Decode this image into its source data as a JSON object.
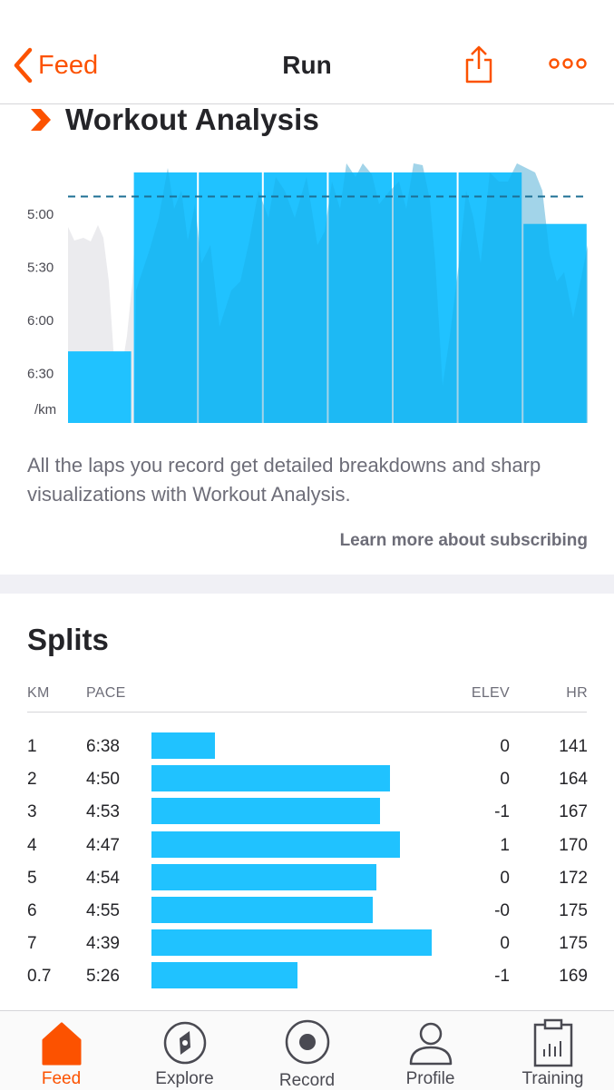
{
  "header": {
    "back_label": "Feed",
    "title": "Run",
    "share_icon": "share-icon",
    "more_icon": "more-icon"
  },
  "workout_analysis": {
    "title": "Workout Analysis",
    "description": "All the laps you record get detailed breakdowns and sharp visualizations with Workout Analysis.",
    "learn_more": "Learn more about subscribing",
    "chart_data": {
      "type": "bar",
      "y_unit": "/km",
      "y_tick_labels": [
        "5:00",
        "5:30",
        "6:00",
        "6:30"
      ],
      "reference_pace_seconds": 290,
      "laps_pace_seconds": [
        398,
        290,
        293,
        287,
        294,
        295,
        279,
        326
      ],
      "bar_color": "#20c2ff",
      "background_trace_color": "#ebebee"
    }
  },
  "splits": {
    "title": "Splits",
    "columns": {
      "km": "KM",
      "pace": "PACE",
      "elev": "ELEV",
      "hr": "HR"
    },
    "rows": [
      {
        "km": "1",
        "pace": "6:38",
        "elev": "0",
        "hr": "141",
        "pace_seconds": 398
      },
      {
        "km": "2",
        "pace": "4:50",
        "elev": "0",
        "hr": "164",
        "pace_seconds": 290
      },
      {
        "km": "3",
        "pace": "4:53",
        "elev": "-1",
        "hr": "167",
        "pace_seconds": 293
      },
      {
        "km": "4",
        "pace": "4:47",
        "elev": "1",
        "hr": "170",
        "pace_seconds": 287
      },
      {
        "km": "5",
        "pace": "4:54",
        "elev": "0",
        "hr": "172",
        "pace_seconds": 294
      },
      {
        "km": "6",
        "pace": "4:55",
        "elev": "-0",
        "hr": "175",
        "pace_seconds": 295
      },
      {
        "km": "7",
        "pace": "4:39",
        "elev": "0",
        "hr": "175",
        "pace_seconds": 279
      },
      {
        "km": "0.7",
        "pace": "5:26",
        "elev": "-1",
        "hr": "169",
        "pace_seconds": 326
      }
    ],
    "bar_color": "#20c2ff"
  },
  "tabs": [
    {
      "label": "Feed",
      "icon": "home-icon",
      "active": true
    },
    {
      "label": "Explore",
      "icon": "compass-icon",
      "active": false
    },
    {
      "label": "Record",
      "icon": "record-icon",
      "active": false
    },
    {
      "label": "Profile",
      "icon": "person-icon",
      "active": false
    },
    {
      "label": "Training",
      "icon": "clipboard-icon",
      "active": false
    }
  ],
  "colors": {
    "accent": "#fc5200",
    "text": "#242428",
    "secondary_text": "#6d6d78",
    "divider": "#d6d6d9"
  }
}
